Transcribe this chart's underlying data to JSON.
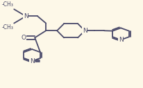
{
  "bg_color": "#fdf8e8",
  "line_color": "#4a4a6a",
  "lw": 1.3,
  "fs": 6.5,
  "xlim": [
    0.0,
    1.0
  ],
  "ylim": [
    0.0,
    1.0
  ]
}
